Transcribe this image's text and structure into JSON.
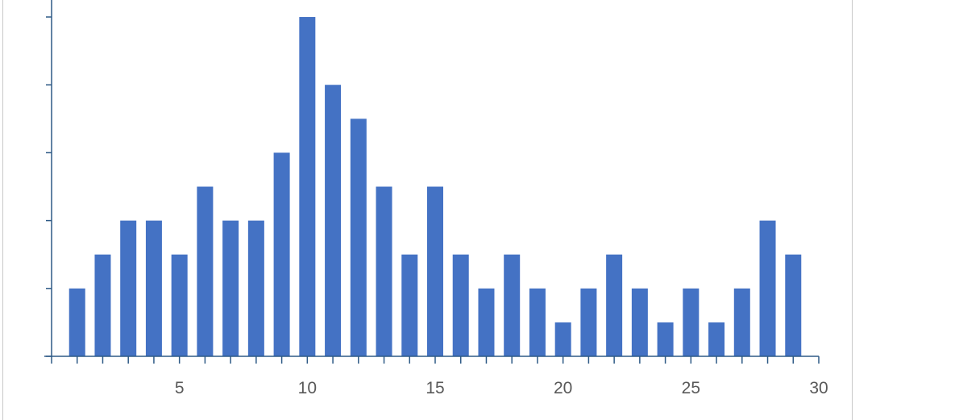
{
  "chart_data": {
    "type": "bar",
    "x": [
      1,
      2,
      3,
      4,
      5,
      6,
      7,
      8,
      9,
      10,
      11,
      12,
      13,
      14,
      15,
      16,
      17,
      18,
      19,
      20,
      21,
      22,
      23,
      24,
      25,
      26,
      27,
      28,
      29
    ],
    "values": [
      2,
      3,
      4,
      4,
      3,
      5,
      4,
      4,
      6,
      10,
      8,
      7,
      5,
      3,
      5,
      3,
      2,
      3,
      2,
      1,
      2,
      3,
      2,
      1,
      2,
      1,
      2,
      4,
      3
    ],
    "xlim": [
      0,
      30
    ],
    "ylim": [
      0,
      10.5
    ],
    "x_tick_labels": [
      "5",
      "10",
      "15",
      "20",
      "25",
      "30"
    ],
    "y_tick_labels_shown": false,
    "title": "",
    "xlabel": "",
    "ylabel": "",
    "grid": false,
    "legend": "none",
    "bar_color": "#4472c4",
    "axis_color": "#2e5a86",
    "tick_label_color": "#595959"
  }
}
